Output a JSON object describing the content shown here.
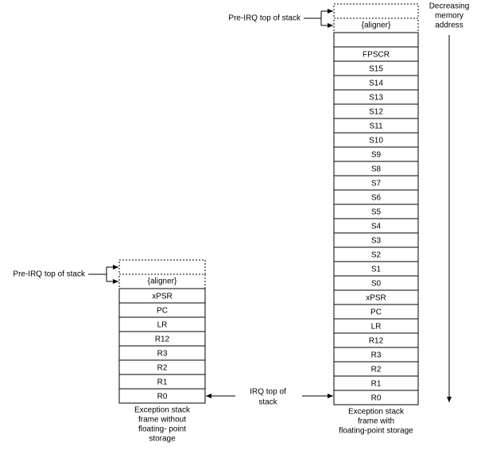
{
  "stack_with_fp": {
    "pre_irq_label": "Pre-IRQ top of stack",
    "aligner": "{aligner}",
    "rows": [
      "FPSCR",
      "S15",
      "S14",
      "S13",
      "S12",
      "S11",
      "S10",
      "S9",
      "S8",
      "S7",
      "S6",
      "S5",
      "S4",
      "S3",
      "S2",
      "S1",
      "S0",
      "xPSR",
      "PC",
      "LR",
      "R12",
      "R3",
      "R2",
      "R1",
      "R0"
    ],
    "caption": [
      "Exception stack",
      "frame with",
      "floating-point storage"
    ]
  },
  "stack_without_fp": {
    "pre_irq_label": "Pre-IRQ top of stack",
    "aligner": "{aligner}",
    "rows": [
      "xPSR",
      "PC",
      "LR",
      "R12",
      "R3",
      "R2",
      "R1",
      "R0"
    ],
    "caption": [
      "Exception stack",
      "frame without",
      "floating- point",
      "storage"
    ]
  },
  "irq_label": [
    "IRQ top of",
    "stack"
  ],
  "direction_label": [
    "Decreasing",
    "memory",
    "address"
  ]
}
